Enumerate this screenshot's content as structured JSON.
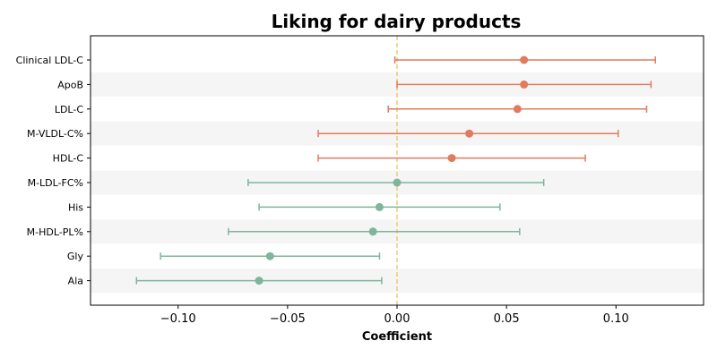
{
  "chart_data": {
    "type": "forest",
    "title": "Liking for dairy products",
    "xlabel": "Coefficient",
    "xlim": [
      -0.14,
      0.14
    ],
    "xticks": [
      -0.1,
      -0.05,
      0.0,
      0.05,
      0.1
    ],
    "xtick_labels": [
      "−0.10",
      "−0.05",
      "0.00",
      "0.05",
      "0.10"
    ],
    "reference_line": 0.0,
    "grid": false,
    "alternating_row_bands": true,
    "colors": {
      "positive": "#e07b5f",
      "negative": "#7fb59b",
      "reference": "#f0c87a",
      "band": "#f5f5f5"
    },
    "rows": [
      {
        "label": "Clinical LDL-C",
        "estimate": 0.058,
        "ci_low": -0.001,
        "ci_high": 0.118
      },
      {
        "label": "ApoB",
        "estimate": 0.058,
        "ci_low": 0.0,
        "ci_high": 0.116
      },
      {
        "label": "LDL-C",
        "estimate": 0.055,
        "ci_low": -0.004,
        "ci_high": 0.114
      },
      {
        "label": "M-VLDL-C%",
        "estimate": 0.033,
        "ci_low": -0.036,
        "ci_high": 0.101
      },
      {
        "label": "HDL-C",
        "estimate": 0.025,
        "ci_low": -0.036,
        "ci_high": 0.086
      },
      {
        "label": "M-LDL-FC%",
        "estimate": 0.0,
        "ci_low": -0.068,
        "ci_high": 0.067
      },
      {
        "label": "His",
        "estimate": -0.008,
        "ci_low": -0.063,
        "ci_high": 0.047
      },
      {
        "label": "M-HDL-PL%",
        "estimate": -0.011,
        "ci_low": -0.077,
        "ci_high": 0.056
      },
      {
        "label": "Gly",
        "estimate": -0.058,
        "ci_low": -0.108,
        "ci_high": -0.008
      },
      {
        "label": "Ala",
        "estimate": -0.063,
        "ci_low": -0.119,
        "ci_high": -0.007
      }
    ]
  }
}
